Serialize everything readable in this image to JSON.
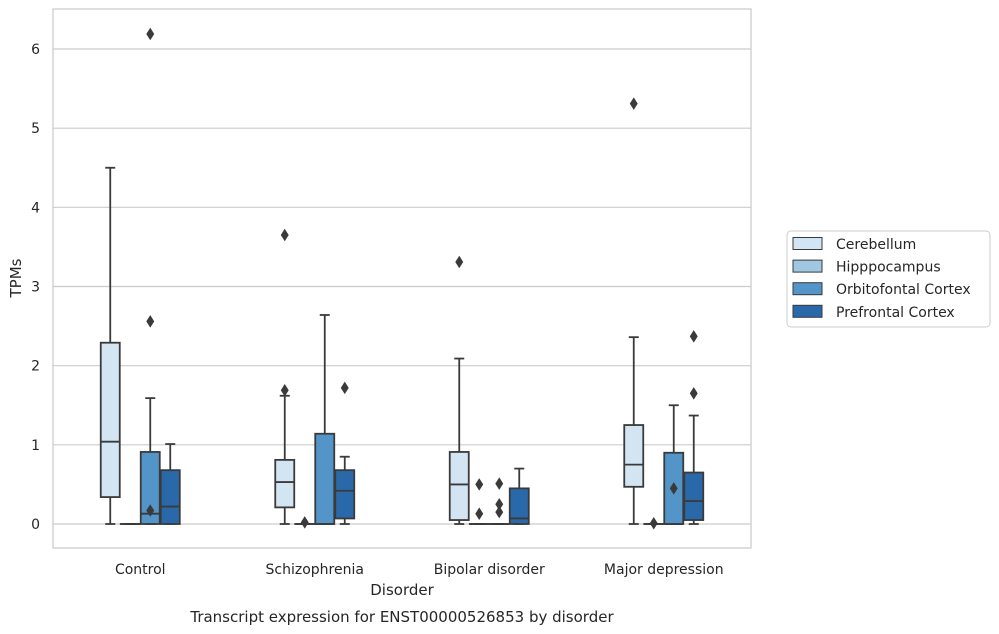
{
  "chart_data": {
    "type": "box",
    "caption": "Transcript expression for ENST00000526853 by disorder",
    "xlabel": "Disorder",
    "ylabel": "TPMs",
    "ylim": [
      -0.3,
      6.5
    ],
    "yticks": [
      0,
      1,
      2,
      3,
      4,
      5,
      6
    ],
    "grid": "horizontal",
    "legend_position": "right",
    "categories": [
      "Control",
      "Schizophrenia",
      "Bipolar disorder",
      "Major depression"
    ],
    "series": [
      {
        "name": "Cerebellum",
        "color": "#d3e4f3",
        "boxes": [
          {
            "whislo": 0.0,
            "q1": 0.34,
            "med": 1.04,
            "q3": 2.29,
            "whishi": 4.5,
            "fliers": []
          },
          {
            "whislo": 0.0,
            "q1": 0.21,
            "med": 0.53,
            "q3": 0.81,
            "whishi": 1.62,
            "fliers": [
              1.69,
              3.65
            ]
          },
          {
            "whislo": 0.0,
            "q1": 0.05,
            "med": 0.5,
            "q3": 0.91,
            "whishi": 2.09,
            "fliers": [
              3.31
            ]
          },
          {
            "whislo": 0.0,
            "q1": 0.47,
            "med": 0.75,
            "q3": 1.25,
            "whishi": 2.36,
            "fliers": [
              5.31
            ]
          }
        ]
      },
      {
        "name": "Hipppocampus",
        "color": "#a0c7e1",
        "boxes": [
          {
            "whislo": 0.0,
            "q1": 0.0,
            "med": 0.0,
            "q3": 0.0,
            "whishi": 0.0,
            "fliers": []
          },
          {
            "whislo": 0.0,
            "q1": 0.0,
            "med": 0.0,
            "q3": 0.0,
            "whishi": 0.0,
            "fliers": [
              0.02
            ]
          },
          {
            "whislo": 0.0,
            "q1": 0.0,
            "med": 0.0,
            "q3": 0.0,
            "whishi": 0.0,
            "fliers": [
              0.13,
              0.5
            ]
          },
          {
            "whislo": 0.0,
            "q1": 0.0,
            "med": 0.0,
            "q3": 0.0,
            "whishi": 0.0,
            "fliers": [
              0.01
            ]
          }
        ]
      },
      {
        "name": "Orbitofontal Cortex",
        "color": "#5395c8",
        "boxes": [
          {
            "whislo": 0.0,
            "q1": 0.0,
            "med": 0.13,
            "q3": 0.91,
            "whishi": 1.59,
            "fliers": [
              0.17,
              2.56,
              6.19
            ]
          },
          {
            "whislo": 0.0,
            "q1": 0.0,
            "med": 0.0,
            "q3": 1.14,
            "whishi": 2.64,
            "fliers": []
          },
          {
            "whislo": 0.0,
            "q1": 0.0,
            "med": 0.0,
            "q3": 0.0,
            "whishi": 0.0,
            "fliers": [
              0.15,
              0.25,
              0.51
            ]
          },
          {
            "whislo": 0.0,
            "q1": 0.0,
            "med": 0.0,
            "q3": 0.9,
            "whishi": 1.5,
            "fliers": [
              0.45
            ]
          }
        ]
      },
      {
        "name": "Prefrontal Cortex",
        "color": "#2a69a9",
        "boxes": [
          {
            "whislo": 0.0,
            "q1": 0.0,
            "med": 0.22,
            "q3": 0.68,
            "whishi": 1.01,
            "fliers": []
          },
          {
            "whislo": 0.0,
            "q1": 0.07,
            "med": 0.42,
            "q3": 0.68,
            "whishi": 0.85,
            "fliers": [
              1.72
            ]
          },
          {
            "whislo": 0.0,
            "q1": 0.0,
            "med": 0.07,
            "q3": 0.45,
            "whishi": 0.7,
            "fliers": []
          },
          {
            "whislo": 0.0,
            "q1": 0.05,
            "med": 0.29,
            "q3": 0.65,
            "whishi": 1.37,
            "fliers": [
              1.65,
              2.37
            ]
          }
        ]
      }
    ]
  }
}
